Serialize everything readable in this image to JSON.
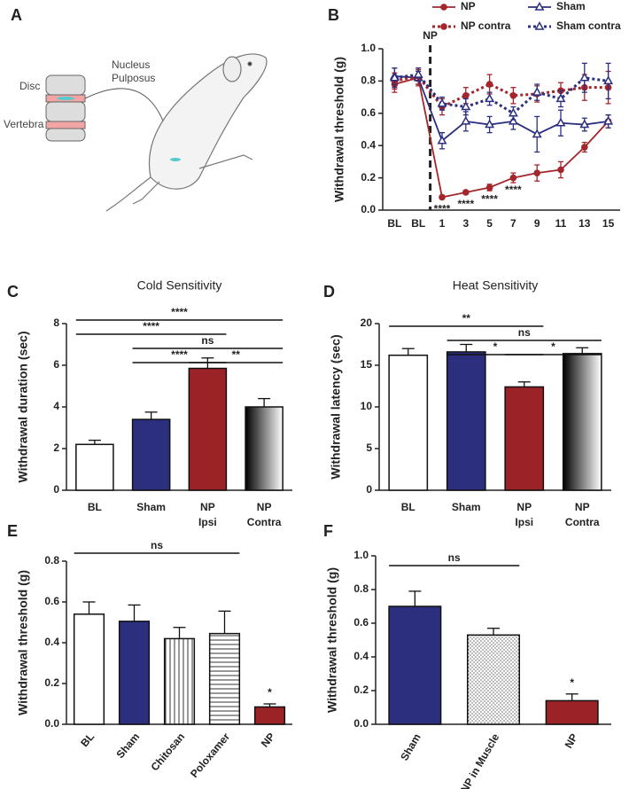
{
  "illustration": {
    "panel": "A",
    "labels": [
      "Disc",
      "Vertebra",
      "Nucleus",
      "Pulposus"
    ]
  },
  "chart_data": [
    {
      "type": "line",
      "panel": "B",
      "ylabel": "Withdrawal threshold (g)",
      "categories": [
        "BL",
        "BL",
        "1",
        "3",
        "5",
        "7",
        "9",
        "11",
        "13",
        "15"
      ],
      "divider_label": "NP",
      "divider_after": 1,
      "series": [
        {
          "name": "NP",
          "color": "#a3262b",
          "dash": false,
          "marker": "circle",
          "values": [
            0.78,
            0.82,
            0.08,
            0.11,
            0.14,
            0.2,
            0.23,
            0.25,
            0.39,
            0.55
          ],
          "errors": [
            0.05,
            0.05,
            0.01,
            0.01,
            0.02,
            0.03,
            0.05,
            0.05,
            0.03,
            0.04
          ],
          "point_labels": [
            null,
            null,
            "****",
            "****",
            "****",
            "****",
            null,
            null,
            null,
            null
          ]
        },
        {
          "name": "Sham",
          "color": "#2b2f7e",
          "dash": false,
          "marker": "triangle",
          "values": [
            0.83,
            0.82,
            0.43,
            0.55,
            0.53,
            0.55,
            0.47,
            0.54,
            0.53,
            0.55
          ],
          "errors": [
            0.05,
            0.04,
            0.05,
            0.06,
            0.05,
            0.05,
            0.11,
            0.08,
            0.04,
            0.04
          ]
        },
        {
          "name": "NP contra",
          "color": "#a3262b",
          "dash": true,
          "marker": "circle",
          "values": [
            0.8,
            0.83,
            0.64,
            0.71,
            0.78,
            0.71,
            0.72,
            0.74,
            0.76,
            0.76
          ],
          "errors": [
            0.05,
            0.05,
            0.05,
            0.05,
            0.06,
            0.05,
            0.05,
            0.05,
            0.08,
            0.1
          ]
        },
        {
          "name": "Sham contra",
          "color": "#2b2f7e",
          "dash": true,
          "marker": "triangle",
          "values": [
            0.82,
            0.84,
            0.66,
            0.64,
            0.69,
            0.6,
            0.73,
            0.69,
            0.82,
            0.8
          ],
          "errors": [
            0.06,
            0.04,
            0.04,
            0.05,
            0.04,
            0.04,
            0.05,
            0.05,
            0.09,
            0.11
          ]
        }
      ],
      "ylim": [
        0,
        1
      ],
      "yticks": [
        {
          "value": 0,
          "label": "0.0"
        },
        0.2,
        0.4,
        0.6,
        0.8,
        {
          "value": 1,
          "label": "1.0"
        }
      ]
    },
    {
      "type": "bar",
      "panel": "C",
      "title": "Cold Sensitivity",
      "ylabel": "Withdrawal duration (sec)",
      "categories": [
        [
          "BL"
        ],
        [
          "Sham"
        ],
        [
          "NP",
          "Ipsi"
        ],
        [
          "NP",
          "Contra"
        ]
      ],
      "values": [
        2.2,
        3.4,
        5.85,
        4.0
      ],
      "errors": [
        0.2,
        0.35,
        0.5,
        0.4
      ],
      "fills": [
        "#ffffff",
        "#2b2f7e",
        "#9b2226",
        "gradient"
      ],
      "ylim": [
        0,
        8
      ],
      "yticks": [
        0,
        2,
        4,
        6,
        8
      ],
      "xtick_rotation": 0,
      "comparisons": [
        {
          "from": 2,
          "to": 3,
          "label": "**"
        },
        {
          "from": 1,
          "to": 2,
          "label": "****"
        },
        {
          "from": 1,
          "to": 3,
          "label": "ns"
        },
        {
          "from": 0,
          "to": 2,
          "label": "****"
        },
        {
          "from": 0,
          "to": 3,
          "label": "****"
        }
      ]
    },
    {
      "type": "bar",
      "panel": "D",
      "title": "Heat Sensitivity",
      "ylabel": "Withdrawal latency (sec)",
      "categories": [
        [
          "BL"
        ],
        [
          "Sham"
        ],
        [
          "NP",
          "Ipsi"
        ],
        [
          "NP",
          "Contra"
        ]
      ],
      "values": [
        16.2,
        16.6,
        12.4,
        16.4
      ],
      "errors": [
        0.8,
        0.9,
        0.6,
        0.7
      ],
      "fills": [
        "#ffffff",
        "#2b2f7e",
        "#9b2226",
        "gradient"
      ],
      "ylim": [
        0,
        20
      ],
      "yticks": [
        0,
        5,
        10,
        15,
        20
      ],
      "xtick_rotation": 0,
      "comparisons": [
        {
          "from": 1,
          "to": 2,
          "label": "*"
        },
        {
          "from": 2,
          "to": 3,
          "label": "*"
        },
        {
          "from": 1,
          "to": 3,
          "label": "ns"
        },
        {
          "from": 0,
          "to": 2,
          "label": "**"
        }
      ]
    },
    {
      "type": "bar",
      "panel": "E",
      "ylabel": "Withdrawal threshold (g)",
      "categories": [
        "BL",
        "Sham",
        "Chitosan",
        "Poloxamer",
        "NP"
      ],
      "values": [
        0.54,
        0.505,
        0.42,
        0.445,
        0.085
      ],
      "errors": [
        0.06,
        0.08,
        0.055,
        0.11,
        0.015
      ],
      "fills": [
        "#ffffff",
        "#2b2f7e",
        "vstripes",
        "hstripes",
        "#9b2226"
      ],
      "point_labels": [
        null,
        null,
        null,
        null,
        "*"
      ],
      "ylim": [
        0,
        0.8
      ],
      "yticks": [
        {
          "value": 0,
          "label": "0.0"
        },
        0.2,
        0.4,
        0.6,
        0.8
      ],
      "xtick_rotation": -50,
      "comparisons": [
        {
          "from": 0,
          "to": 3,
          "label": "ns"
        }
      ]
    },
    {
      "type": "bar",
      "panel": "F",
      "ylabel": "Withdrawal threshold (g)",
      "categories": [
        "Sham",
        "NP in Muscle",
        "NP"
      ],
      "values": [
        0.7,
        0.53,
        0.14
      ],
      "errors": [
        0.09,
        0.04,
        0.04
      ],
      "fills": [
        "#2b2f7e",
        "dots",
        "#9b2226"
      ],
      "point_labels": [
        null,
        null,
        "*"
      ],
      "ylim": [
        0,
        1
      ],
      "yticks": [
        {
          "value": 0,
          "label": "0.0"
        },
        0.2,
        0.4,
        0.6,
        0.8,
        {
          "value": 1,
          "label": "1.0"
        }
      ],
      "xtick_rotation": -60,
      "comparisons": [
        {
          "from": 0,
          "to": 1,
          "label": "ns"
        }
      ]
    }
  ]
}
